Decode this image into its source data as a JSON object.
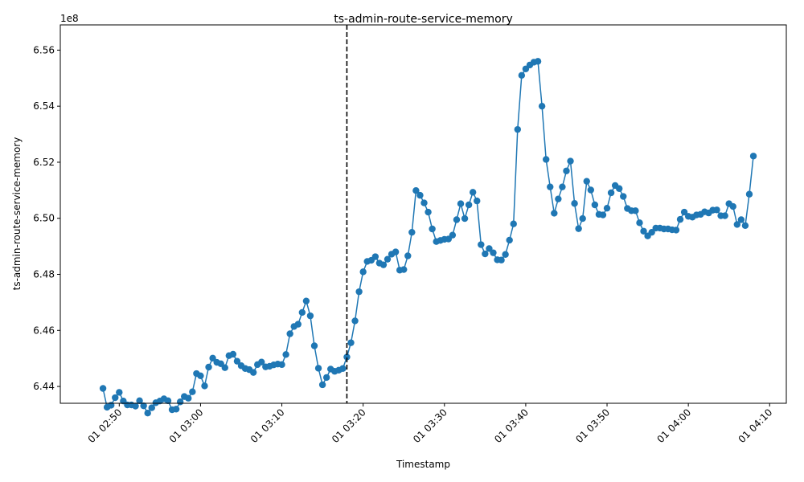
{
  "chart_data": {
    "type": "line",
    "title": "ts-admin-route-service-memory",
    "xlabel": "Timestamp",
    "ylabel": "ts-admin-route-service-memory",
    "y_offset_label": "1e8",
    "ylim": [
      643400000,
      656900000
    ],
    "y_ticks": [
      {
        "value": 644000000,
        "label": "6.44"
      },
      {
        "value": 646000000,
        "label": "6.46"
      },
      {
        "value": 648000000,
        "label": "6.48"
      },
      {
        "value": 650000000,
        "label": "6.50"
      },
      {
        "value": 652000000,
        "label": "6.52"
      },
      {
        "value": 654000000,
        "label": "6.54"
      },
      {
        "value": 656000000,
        "label": "6.56"
      }
    ],
    "x_ticks": [
      "01 02:50",
      "01 03:00",
      "01 03:10",
      "01 03:20",
      "01 03:30",
      "01 03:40",
      "01 03:50",
      "01 04:00",
      "01 04:10"
    ],
    "vertical_marker_x": "01 03:18",
    "color": "#1f77b4",
    "grid": false,
    "series": [
      {
        "x": [
          "02:48",
          "02:48:30",
          "02:49",
          "02:49:30",
          "02:50",
          "02:50:30",
          "02:51",
          "02:51:30",
          "02:52",
          "02:52:30",
          "02:53",
          "02:53:30",
          "02:54",
          "02:54:30",
          "02:55",
          "02:55:30",
          "02:56",
          "02:56:30",
          "02:57",
          "02:57:30",
          "02:58",
          "02:58:30",
          "02:59",
          "02:59:30",
          "03:00",
          "03:00:30",
          "03:01",
          "03:01:30",
          "03:02",
          "03:02:30",
          "03:03",
          "03:03:30",
          "03:04",
          "03:04:30",
          "03:05",
          "03:05:30",
          "03:06",
          "03:06:30",
          "03:07",
          "03:07:30",
          "03:08",
          "03:08:30",
          "03:09",
          "03:09:30",
          "03:10",
          "03:10:30",
          "03:11",
          "03:11:30",
          "03:12",
          "03:12:30",
          "03:13",
          "03:13:30",
          "03:14",
          "03:14:30",
          "03:15",
          "03:15:30",
          "03:16",
          "03:16:30",
          "03:17",
          "03:17:30",
          "03:18",
          "03:18:30",
          "03:19",
          "03:19:30",
          "03:20",
          "03:20:30",
          "03:21",
          "03:21:30",
          "03:22",
          "03:22:30",
          "03:23",
          "03:23:30",
          "03:24",
          "03:24:30",
          "03:25",
          "03:25:30",
          "03:26",
          "03:26:30",
          "03:27",
          "03:27:30",
          "03:28",
          "03:28:30",
          "03:29",
          "03:29:30",
          "03:30",
          "03:30:30",
          "03:31",
          "03:31:30",
          "03:32",
          "03:32:30",
          "03:33",
          "03:33:30",
          "03:34",
          "03:34:30",
          "03:35",
          "03:35:30",
          "03:36",
          "03:36:30",
          "03:37",
          "03:37:30",
          "03:38",
          "03:38:30",
          "03:39",
          "03:39:30",
          "03:40",
          "03:40:30",
          "03:41",
          "03:41:30",
          "03:42",
          "03:42:30",
          "03:43",
          "03:43:30",
          "03:44",
          "03:44:30",
          "03:45",
          "03:45:30",
          "03:46",
          "03:46:30",
          "03:47",
          "03:47:30",
          "03:48",
          "03:48:30",
          "03:49",
          "03:49:30",
          "03:50",
          "03:50:30",
          "03:51",
          "03:51:30",
          "03:52",
          "03:52:30",
          "03:53",
          "03:53:30",
          "03:54",
          "03:54:30",
          "03:55",
          "03:55:30",
          "03:56",
          "03:56:30",
          "03:57",
          "03:57:30",
          "03:58",
          "03:58:30",
          "03:59",
          "03:59:30",
          "04:00",
          "04:00:30",
          "04:01",
          "04:01:30",
          "04:02",
          "04:02:30",
          "04:03",
          "04:03:30",
          "04:04",
          "04:04:30",
          "04:05",
          "04:05:30",
          "04:06",
          "04:06:30",
          "04:07",
          "04:07:30",
          "04:08"
        ],
        "values": [
          643930000,
          643260000,
          643330000,
          643600000,
          643790000,
          643480000,
          643340000,
          643340000,
          643300000,
          643490000,
          643310000,
          643050000,
          643240000,
          643420000,
          643480000,
          643560000,
          643490000,
          643170000,
          643190000,
          643450000,
          643640000,
          643580000,
          643810000,
          644460000,
          644380000,
          644020000,
          644690000,
          645010000,
          644860000,
          644810000,
          644670000,
          645100000,
          645150000,
          644900000,
          644740000,
          644640000,
          644600000,
          644500000,
          644780000,
          644870000,
          644700000,
          644720000,
          644770000,
          644800000,
          644780000,
          645140000,
          645880000,
          646140000,
          646220000,
          646640000,
          647050000,
          646520000,
          645450000,
          644650000,
          644060000,
          644320000,
          644620000,
          644540000,
          644580000,
          644640000,
          645050000,
          645560000,
          646340000,
          647380000,
          648090000,
          648460000,
          648500000,
          648630000,
          648400000,
          648340000,
          648540000,
          648720000,
          648800000,
          648150000,
          648170000,
          648660000,
          649500000,
          650990000,
          650820000,
          650550000,
          650220000,
          649620000,
          649170000,
          649210000,
          649250000,
          649260000,
          649400000,
          649950000,
          650520000,
          649990000,
          650480000,
          650930000,
          650620000,
          649060000,
          648730000,
          648920000,
          648770000,
          648520000,
          648510000,
          648710000,
          649220000,
          649800000,
          653170000,
          655100000,
          655330000,
          655470000,
          655570000,
          655600000,
          654000000,
          652100000,
          651120000,
          650180000,
          650690000,
          651120000,
          651690000,
          652040000,
          650530000,
          649630000,
          649990000,
          651320000,
          651010000,
          650480000,
          650140000,
          650120000,
          650360000,
          650910000,
          651170000,
          651060000,
          650780000,
          650350000,
          650270000,
          650270000,
          649840000,
          649540000,
          649370000,
          649500000,
          649650000,
          649650000,
          649620000,
          649620000,
          649590000,
          649580000,
          649960000,
          650220000,
          650070000,
          650040000,
          650120000,
          650140000,
          650230000,
          650190000,
          650290000,
          650300000,
          650090000,
          650090000,
          650520000,
          650420000,
          649780000,
          649950000,
          649740000,
          650860000,
          652220000
        ]
      }
    ]
  }
}
